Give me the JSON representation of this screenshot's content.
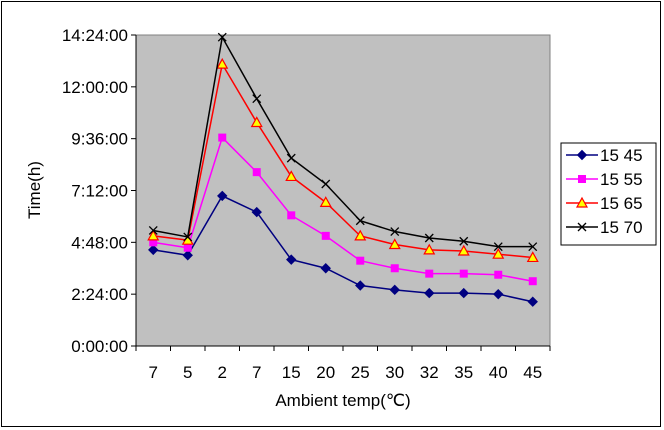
{
  "chart_data": {
    "type": "line",
    "title": "",
    "xlabel": "Ambient temp(℃)",
    "ylabel": "Time(h)",
    "categories": [
      "7",
      "5",
      "2",
      "7",
      "15",
      "20",
      "25",
      "30",
      "32",
      "35",
      "40",
      "45"
    ],
    "y_ticks": [
      "0:00:00",
      "2:24:00",
      "4:48:00",
      "7:12:00",
      "9:36:00",
      "12:00:00",
      "14:24:00"
    ],
    "ylim_hours": [
      0,
      14.4
    ],
    "grid": false,
    "plot_background": "#c0c0c0",
    "legend_position": "right",
    "series": [
      {
        "name": "15 45",
        "color": "#000080",
        "marker": "diamond",
        "values_hours": [
          4.45,
          4.2,
          6.95,
          6.2,
          4.0,
          3.6,
          2.8,
          2.6,
          2.45,
          2.45,
          2.4,
          2.05
        ]
      },
      {
        "name": "15 55",
        "color": "#ff00ff",
        "marker": "square",
        "values_hours": [
          4.8,
          4.55,
          9.65,
          8.05,
          6.05,
          5.1,
          3.95,
          3.6,
          3.35,
          3.35,
          3.3,
          3.0
        ]
      },
      {
        "name": "15 65",
        "color": "#ff0000",
        "marker": "triangle",
        "values_hours": [
          5.1,
          4.9,
          13.05,
          10.35,
          7.85,
          6.65,
          5.1,
          4.7,
          4.45,
          4.4,
          4.25,
          4.1
        ]
      },
      {
        "name": "15 70",
        "color": "#000000",
        "marker": "x",
        "values_hours": [
          5.35,
          5.05,
          14.3,
          11.45,
          8.7,
          7.5,
          5.8,
          5.3,
          5.0,
          4.85,
          4.6,
          4.6
        ]
      }
    ]
  }
}
